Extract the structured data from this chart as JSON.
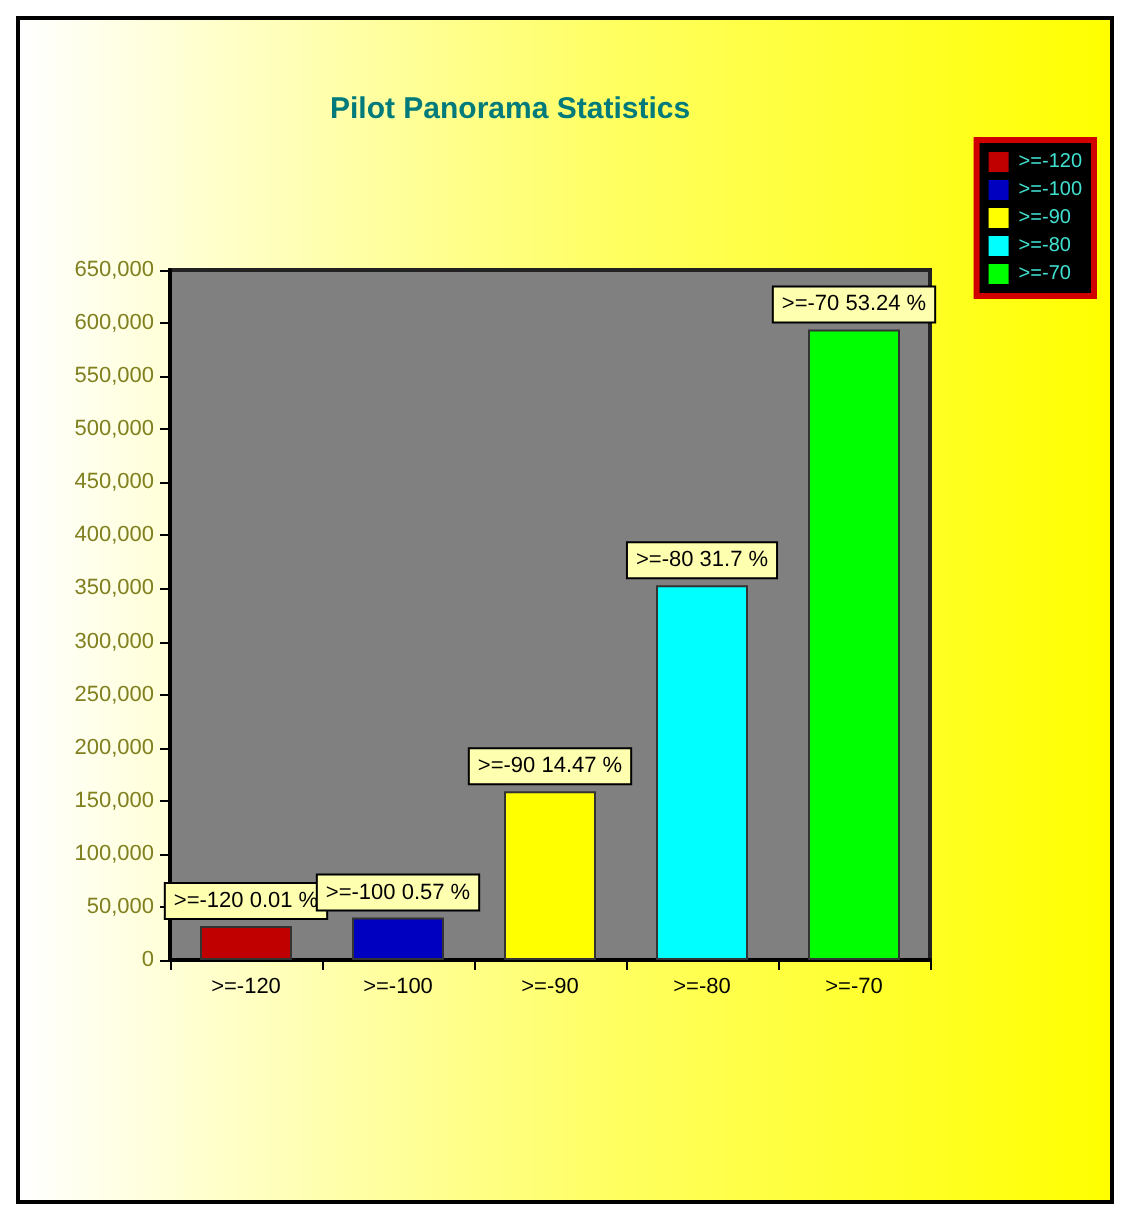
{
  "chart_data": {
    "type": "bar",
    "title": "Pilot Panorama Statistics",
    "categories": [
      ">=-120",
      ">=-100",
      ">=-90",
      ">=-80",
      ">=-70"
    ],
    "stacked": true,
    "series": [
      {
        "name": ">=-120",
        "color": "#c00000",
        "values": [
          32000,
          null,
          null,
          null,
          null
        ]
      },
      {
        "name": ">=-100",
        "color": "#0000c0",
        "values": [
          null,
          40000,
          null,
          null,
          null
        ]
      },
      {
        "name": ">=-90",
        "color": "#ffff00",
        "values": [
          null,
          null,
          159000,
          null,
          null
        ]
      },
      {
        "name": ">=-80",
        "color": "#00ffff",
        "values": [
          null,
          null,
          null,
          353000,
          null
        ]
      },
      {
        "name": ">=-70",
        "color": "#00ff00",
        "values": [
          null,
          null,
          null,
          null,
          594000
        ]
      }
    ],
    "annotations": [
      {
        "text": ">=-120 0.01 %",
        "x": ">=-120",
        "y": 32000
      },
      {
        "text": ">=-100 0.57 %",
        "x": ">=-100",
        "y": 40000
      },
      {
        "text": ">=-90 14.47 %",
        "x": ">=-90",
        "y": 159000
      },
      {
        "text": ">=-80 31.7 %",
        "x": ">=-80",
        "y": 353000
      },
      {
        "text": ">=-70 53.24 %",
        "x": ">=-70",
        "y": 594000
      }
    ],
    "ylim": [
      0,
      650000
    ],
    "yticks": [
      0,
      {
        "value": 50000,
        "label": "50,000"
      },
      {
        "value": 100000,
        "label": "100,000"
      },
      {
        "value": 150000,
        "label": "150,000"
      },
      {
        "value": 200000,
        "label": "200,000"
      },
      {
        "value": 250000,
        "label": "250,000"
      },
      {
        "value": 300000,
        "label": "300,000"
      },
      {
        "value": 350000,
        "label": "350,000"
      },
      {
        "value": 400000,
        "label": "400,000"
      },
      {
        "value": 450000,
        "label": "450,000"
      },
      {
        "value": 500000,
        "label": "500,000"
      },
      {
        "value": 550000,
        "label": "550,000"
      },
      {
        "value": 600000,
        "label": "600,000"
      },
      {
        "value": 650000,
        "label": "650,000"
      }
    ],
    "legend": "top right",
    "grid": false
  }
}
